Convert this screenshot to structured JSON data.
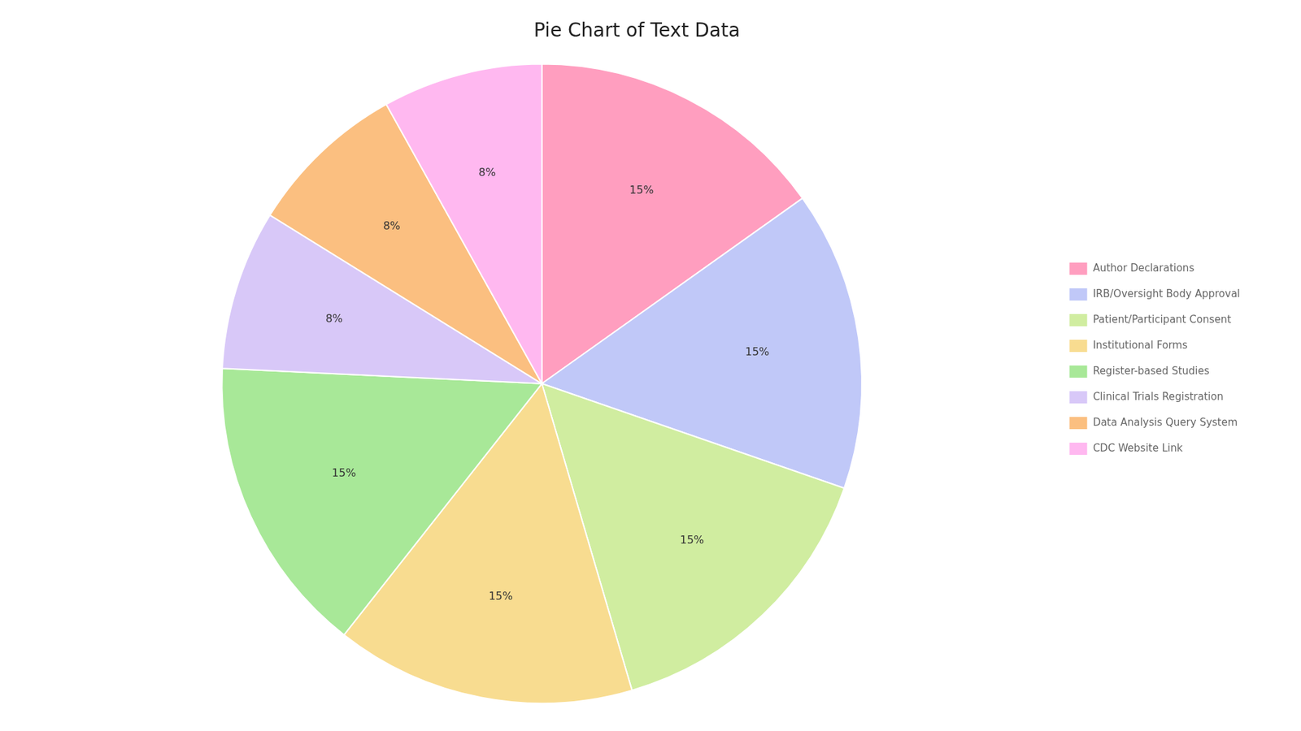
{
  "chart_data": {
    "type": "pie",
    "title": "Pie Chart of Text Data",
    "categories": [
      "Author Declarations",
      "IRB/Oversight Body Approval",
      "Patient/Participant Consent",
      "Institutional Forms",
      "Register-based Studies",
      "Clinical Trials Registration",
      "Data Analysis Query System",
      "CDC Website Link"
    ],
    "values": [
      15,
      15,
      15,
      15,
      15,
      8,
      8,
      8
    ],
    "value_labels": [
      "15%",
      "15%",
      "15%",
      "15%",
      "15%",
      "8%",
      "8%",
      "8%"
    ],
    "colors": [
      "#FF9EBF",
      "#C0C8F8",
      "#D0EDA0",
      "#F8DC90",
      "#A8E898",
      "#D8C8F8",
      "#FBBF80",
      "#FFB8F0"
    ],
    "data_labels": true,
    "legend": "right"
  }
}
